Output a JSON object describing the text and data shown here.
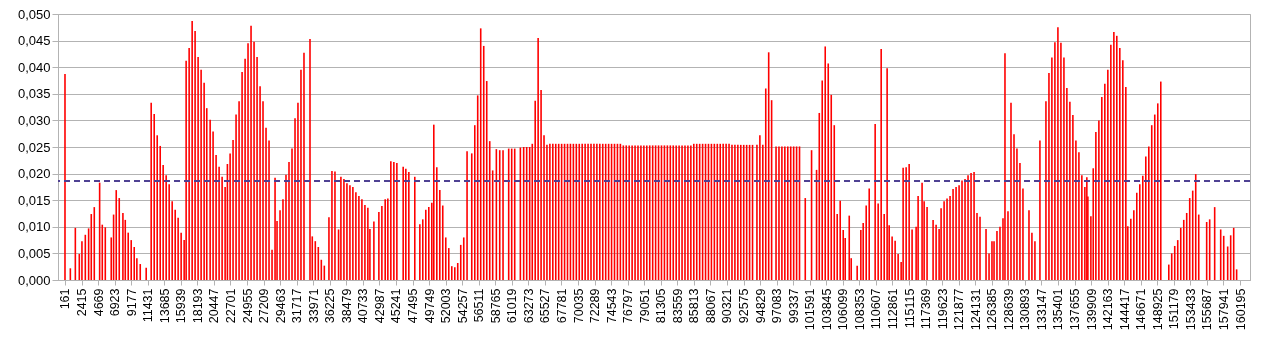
{
  "chart_data": {
    "type": "bar",
    "color": "#ff0000",
    "x": [
      161,
      890,
      1570,
      2110,
      2470,
      2930,
      3380,
      3740,
      4150,
      4880,
      5240,
      5650,
      6460,
      6780,
      7140,
      7550,
      8050,
      8370,
      8770,
      9180,
      9590,
      9950,
      10410,
      11220,
      11900,
      12310,
      12720,
      13130,
      13530,
      13940,
      14350,
      14760,
      15170,
      15570,
      15980,
      16390,
      16660,
      17070,
      17480,
      17880,
      18290,
      18700,
      19110,
      19470,
      19930,
      20330,
      20740,
      21150,
      21560,
      21970,
      22280,
      22650,
      23050,
      23460,
      23870,
      24280,
      24690,
      25090,
      25500,
      25910,
      26320,
      26730,
      27130,
      27540,
      27950,
      28360,
      28770,
      29040,
      29450,
      29850,
      30260,
      30670,
      31080,
      31490,
      31890,
      32300,
      32710,
      33530,
      33840,
      34250,
      34660,
      35070,
      35480,
      36110,
      36520,
      36930,
      37420,
      37740,
      38150,
      38560,
      38970,
      39370,
      39780,
      40190,
      40600,
      41010,
      41410,
      41690,
      42230,
      42910,
      43320,
      43770,
      44130,
      44540,
      44950,
      45360,
      46220,
      46580,
      46990,
      47800,
      48490,
      48890,
      49300,
      49710,
      50120,
      50390,
      50800,
      51210,
      51610,
      52020,
      52430,
      52840,
      53250,
      53650,
      54060,
      54470,
      54920,
      55560,
      55970,
      56370,
      56780,
      57190,
      57600,
      58010,
      58410,
      58910,
      59370,
      59820,
      60590,
      61000,
      61410,
      62180,
      62630,
      63040,
      63450,
      63800,
      64200,
      64600,
      65000,
      65400,
      65800,
      66200,
      66600,
      67000,
      67400,
      67800,
      68200,
      68600,
      69000,
      69400,
      69800,
      70200,
      70600,
      71000,
      71400,
      71800,
      72200,
      72600,
      73000,
      73400,
      73800,
      74200,
      74600,
      75000,
      75400,
      75800,
      76200,
      76600,
      77000,
      77400,
      77800,
      78200,
      78600,
      79000,
      79400,
      79800,
      80200,
      80600,
      81000,
      81400,
      81800,
      82200,
      82600,
      83000,
      83400,
      83800,
      84200,
      84600,
      85000,
      85400,
      85800,
      86200,
      86600,
      87000,
      87400,
      87800,
      88200,
      88600,
      89000,
      89400,
      89800,
      90200,
      90600,
      91000,
      91400,
      91800,
      92200,
      92600,
      93000,
      93400,
      93800,
      94400,
      94800,
      95200,
      95600,
      96000,
      96400,
      97000,
      97400,
      97800,
      98200,
      98600,
      99000,
      99400,
      99800,
      100200,
      100980,
      101840,
      102520,
      102890,
      103290,
      103700,
      104110,
      104520,
      104930,
      105330,
      105740,
      106150,
      106420,
      106970,
      107240,
      108050,
      108550,
      108870,
      109280,
      109690,
      110500,
      110910,
      111320,
      111730,
      112130,
      112410,
      112810,
      113220,
      113630,
      114040,
      114310,
      114720,
      115130,
      115530,
      116080,
      116350,
      116890,
      117170,
      117570,
      118390,
      118800,
      119210,
      119480,
      119890,
      120290,
      120700,
      121110,
      121520,
      121930,
      122330,
      122740,
      123150,
      123560,
      123970,
      124370,
      124780,
      125600,
      126010,
      126410,
      126690,
      127090,
      127500,
      127910,
      128180,
      128590,
      129000,
      129410,
      129810,
      130220,
      130630,
      131450,
      131850,
      132260,
      132940,
      133760,
      134170,
      134570,
      134980,
      135390,
      135800,
      136210,
      136610,
      137020,
      137430,
      137840,
      138250,
      138650,
      139060,
      139330,
      139470,
      139880,
      140200,
      140560,
      140970,
      141370,
      141780,
      142190,
      142600,
      143010,
      143410,
      143820,
      144230,
      144640,
      144910,
      145320,
      145730,
      146130,
      146540,
      146950,
      147360,
      147770,
      148170,
      148580,
      148990,
      149400,
      150490,
      150890,
      151300,
      151710,
      152120,
      152530,
      152930,
      153340,
      153750,
      154160,
      154570,
      155650,
      156060,
      156740,
      157560,
      157970,
      158510,
      158920,
      159330,
      159730
    ],
    "values": [
      0.0387,
      0.0022,
      0.0098,
      0.0049,
      0.0073,
      0.0085,
      0.0097,
      0.0124,
      0.0137,
      0.0183,
      0.0104,
      0.0099,
      0.008,
      0.0123,
      0.0169,
      0.0154,
      0.0126,
      0.0113,
      0.0089,
      0.0075,
      0.0062,
      0.0041,
      0.003,
      0.0023,
      0.0333,
      0.0312,
      0.0272,
      0.0252,
      0.0216,
      0.0197,
      0.018,
      0.0148,
      0.0132,
      0.0117,
      0.0089,
      0.0075,
      0.0412,
      0.0436,
      0.0487,
      0.0468,
      0.0419,
      0.0395,
      0.0371,
      0.0323,
      0.0301,
      0.0279,
      0.0235,
      0.0213,
      0.0194,
      0.0175,
      0.0218,
      0.0238,
      0.0263,
      0.0311,
      0.0336,
      0.0391,
      0.0416,
      0.0445,
      0.0478,
      0.0448,
      0.0419,
      0.0364,
      0.0336,
      0.0286,
      0.0262,
      0.0057,
      0.0192,
      0.0111,
      0.0131,
      0.0152,
      0.0198,
      0.0222,
      0.0247,
      0.0304,
      0.0333,
      0.0395,
      0.0427,
      0.0453,
      0.0082,
      0.0073,
      0.0062,
      0.0038,
      0.0027,
      0.0118,
      0.0205,
      0.0204,
      0.0095,
      0.0194,
      0.019,
      0.0182,
      0.0178,
      0.0175,
      0.0165,
      0.0158,
      0.0152,
      0.0141,
      0.0136,
      0.0096,
      0.011,
      0.0128,
      0.0139,
      0.0152,
      0.0153,
      0.0223,
      0.0222,
      0.022,
      0.0213,
      0.0209,
      0.0203,
      0.0194,
      0.0105,
      0.0114,
      0.0132,
      0.0137,
      0.0145,
      0.0292,
      0.0212,
      0.0169,
      0.014,
      0.008,
      0.006,
      0.0026,
      0.0024,
      0.0032,
      0.0066,
      0.008,
      0.0242,
      0.0238,
      0.0291,
      0.0347,
      0.0473,
      0.044,
      0.0374,
      0.0261,
      0.0206,
      0.0246,
      0.0244,
      0.0244,
      0.0247,
      0.0247,
      0.0247,
      0.0249,
      0.025,
      0.025,
      0.025,
      0.0256,
      0.0337,
      0.0455,
      0.0357,
      0.0272,
      0.0254,
      0.0256,
      0.0256,
      0.0256,
      0.0256,
      0.0256,
      0.0256,
      0.0256,
      0.0256,
      0.0256,
      0.0256,
      0.0256,
      0.0256,
      0.0256,
      0.0256,
      0.0256,
      0.0256,
      0.0256,
      0.0256,
      0.0256,
      0.0256,
      0.0256,
      0.0256,
      0.0256,
      0.0256,
      0.0256,
      0.0253,
      0.0253,
      0.0253,
      0.0253,
      0.0253,
      0.0253,
      0.0253,
      0.0253,
      0.0253,
      0.0253,
      0.0253,
      0.0253,
      0.0253,
      0.0253,
      0.0253,
      0.0253,
      0.0253,
      0.0253,
      0.0253,
      0.0253,
      0.0253,
      0.0253,
      0.0253,
      0.0253,
      0.0256,
      0.0256,
      0.0256,
      0.0256,
      0.0256,
      0.0256,
      0.0256,
      0.0256,
      0.0256,
      0.0256,
      0.0256,
      0.0256,
      0.0256,
      0.0254,
      0.0254,
      0.0254,
      0.0254,
      0.0254,
      0.0254,
      0.0254,
      0.0254,
      0.0254,
      0.0272,
      0.0254,
      0.036,
      0.0428,
      0.0338,
      0.0251,
      0.0251,
      0.0251,
      0.0251,
      0.0251,
      0.0251,
      0.0251,
      0.0251,
      0.0251,
      0.0154,
      0.0244,
      0.0207,
      0.0314,
      0.0375,
      0.0439,
      0.0407,
      0.0348,
      0.0291,
      0.0124,
      0.0149,
      0.0094,
      0.0079,
      0.0121,
      0.0041,
      0.0027,
      0.0094,
      0.0107,
      0.014,
      0.0172,
      0.0293,
      0.0144,
      0.0434,
      0.0124,
      0.0398,
      0.0103,
      0.0082,
      0.0074,
      0.0049,
      0.0034,
      0.0211,
      0.0212,
      0.0218,
      0.0095,
      0.01,
      0.0158,
      0.0183,
      0.0148,
      0.0137,
      0.0113,
      0.0104,
      0.0096,
      0.0135,
      0.0148,
      0.0153,
      0.0158,
      0.0171,
      0.0175,
      0.0178,
      0.0187,
      0.019,
      0.0197,
      0.0201,
      0.0203,
      0.0126,
      0.0119,
      0.0096,
      0.005,
      0.0073,
      0.0073,
      0.0092,
      0.01,
      0.0116,
      0.0426,
      0.0129,
      0.0333,
      0.0274,
      0.0247,
      0.022,
      0.0172,
      0.0131,
      0.0089,
      0.0073,
      0.0262,
      0.0336,
      0.0389,
      0.0418,
      0.0447,
      0.0475,
      0.0446,
      0.0418,
      0.0361,
      0.0335,
      0.031,
      0.0262,
      0.024,
      0.0197,
      0.0175,
      0.0193,
      0.0157,
      0.012,
      0.021,
      0.0278,
      0.03,
      0.0344,
      0.0369,
      0.0395,
      0.0442,
      0.0466,
      0.0459,
      0.0436,
      0.0413,
      0.0363,
      0.0101,
      0.0115,
      0.0131,
      0.0164,
      0.018,
      0.0196,
      0.0232,
      0.0251,
      0.0291,
      0.0311,
      0.0332,
      0.0373,
      0.0029,
      0.005,
      0.0064,
      0.0075,
      0.0098,
      0.0113,
      0.0126,
      0.0154,
      0.0168,
      0.0199,
      0.0123,
      0.0109,
      0.0114,
      0.0137,
      0.0095,
      0.0083,
      0.0063,
      0.0084,
      0.0098,
      0.002
    ],
    "xlim": [
      -110,
      160870
    ],
    "xticks": [
      161,
      2415,
      4669,
      6923,
      9177,
      11431,
      13685,
      15939,
      18193,
      20447,
      22701,
      24955,
      27209,
      29463,
      31717,
      33971,
      36225,
      38479,
      40733,
      42987,
      45241,
      47495,
      49749,
      52003,
      54257,
      56511,
      58765,
      61019,
      63273,
      65527,
      67781,
      70035,
      72289,
      74543,
      76797,
      79051,
      81305,
      83559,
      85813,
      88067,
      90321,
      92575,
      94829,
      97083,
      99337,
      101591,
      103845,
      106099,
      108353,
      110607,
      112861,
      115115,
      117369,
      119623,
      121877,
      124131,
      126385,
      128639,
      130893,
      133147,
      135401,
      137655,
      139909,
      142163,
      144417,
      146671,
      148925,
      151179,
      153433,
      155687,
      157941,
      160195
    ],
    "ylim": [
      0,
      0.05
    ],
    "yticks": [
      {
        "value": 0,
        "label": "0,000"
      },
      {
        "value": 0.005,
        "label": "0,005"
      },
      {
        "value": 0.01,
        "label": "0,010"
      },
      {
        "value": 0.015,
        "label": "0,015"
      },
      {
        "value": 0.02,
        "label": "0,020"
      },
      {
        "value": 0.025,
        "label": "0,025"
      },
      {
        "value": 0.03,
        "label": "0,030"
      },
      {
        "value": 0.035,
        "label": "0,035"
      },
      {
        "value": 0.04,
        "label": "0,040"
      },
      {
        "value": 0.045,
        "label": "0,045"
      },
      {
        "value": 0.05,
        "label": "0,050"
      }
    ],
    "grid": "y",
    "ref_lines": [
      {
        "axis": "y",
        "value": 0.0186,
        "color": "#4f4193",
        "line_style": "dashed"
      }
    ]
  }
}
